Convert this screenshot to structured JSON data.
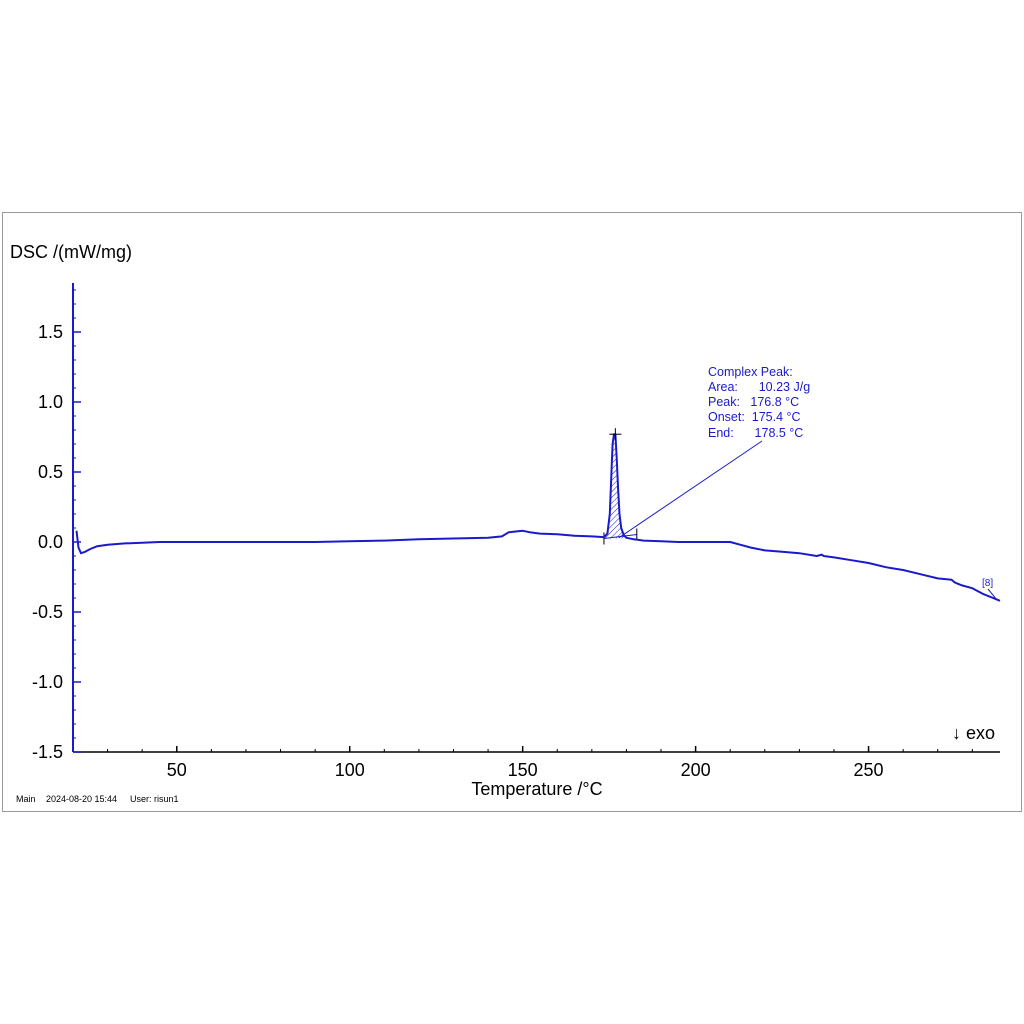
{
  "footer": {
    "segment": "Main",
    "datetime": "2024-08-20 15:44",
    "user": "User: risun1"
  },
  "chart_data": {
    "type": "line",
    "ylabel": "DSC /(mW/mg)",
    "xlabel": "Temperature /°C",
    "xlim": [
      20,
      288
    ],
    "ylim": [
      -1.5,
      1.85
    ],
    "x_ticks": [
      50,
      100,
      150,
      200,
      250
    ],
    "x_tick_labels": [
      "50",
      "100",
      "150",
      "200",
      "250"
    ],
    "y_ticks": [
      1.5,
      1.0,
      0.5,
      0.0,
      -0.5,
      -1.0,
      -1.5
    ],
    "y_tick_labels": [
      "1.5",
      "1.0",
      "0.5",
      "0.0",
      "-0.5",
      "-1.0",
      "-1.5"
    ],
    "grid": false,
    "exo_label": "↓ exo",
    "colors": {
      "curve": "#1a1acc",
      "axis": "#1a1acc",
      "annotation": "#1a1acc"
    },
    "series": [
      {
        "x": [
          21,
          21.6,
          22.3,
          23.5,
          25,
          27,
          30,
          35,
          40,
          45,
          50,
          60,
          70,
          80,
          90,
          100,
          110,
          120,
          130,
          140,
          144,
          146,
          148,
          150,
          152,
          155,
          160,
          165,
          170,
          173.5,
          174.5,
          175.2,
          175.6,
          176.0,
          176.4,
          176.8,
          177.2,
          177.6,
          178.0,
          178.5,
          179.2,
          180,
          182,
          185,
          190,
          195,
          200,
          205,
          210,
          213,
          216,
          220,
          225,
          230,
          235,
          236.5,
          237,
          240,
          245,
          250,
          255,
          260,
          265,
          270,
          274,
          275,
          277,
          280,
          283,
          286,
          288
        ],
        "y": [
          0.08,
          -0.04,
          -0.08,
          -0.07,
          -0.05,
          -0.03,
          -0.02,
          -0.01,
          -0.005,
          0.0,
          0.0,
          0.0,
          0.0,
          0.0,
          0.0,
          0.005,
          0.01,
          0.02,
          0.025,
          0.03,
          0.04,
          0.07,
          0.075,
          0.08,
          0.07,
          0.06,
          0.055,
          0.045,
          0.04,
          0.035,
          0.06,
          0.2,
          0.45,
          0.7,
          0.77,
          0.77,
          0.6,
          0.38,
          0.2,
          0.1,
          0.05,
          0.03,
          0.02,
          0.01,
          0.005,
          0.0,
          0.0,
          0.0,
          0.0,
          -0.02,
          -0.04,
          -0.06,
          -0.07,
          -0.08,
          -0.1,
          -0.09,
          -0.1,
          -0.11,
          -0.13,
          -0.15,
          -0.18,
          -0.2,
          -0.23,
          -0.26,
          -0.27,
          -0.29,
          -0.31,
          -0.33,
          -0.37,
          -0.4,
          -0.42
        ]
      }
    ],
    "peak_annotation": {
      "lines": [
        "Complex Peak:",
        "Area:      10.23 J/g",
        "Peak:   176.8 °C",
        "Onset:  175.4 °C",
        "End:      178.5 °C"
      ],
      "peak_x": 176.8,
      "peak_y": 0.77,
      "baseline_start_x": 173.5,
      "baseline_end_x": 183,
      "baseline_y": 0.025
    },
    "marker_label": "[8]"
  }
}
